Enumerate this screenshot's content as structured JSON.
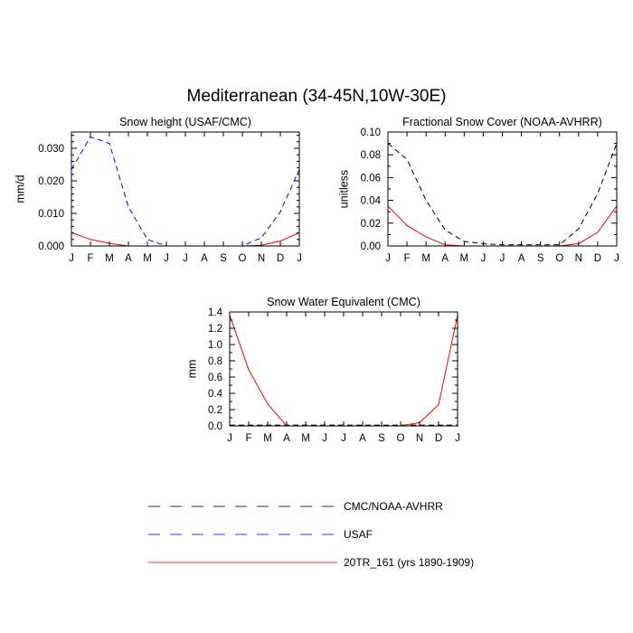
{
  "figure": {
    "title": "Mediterranean (34-45N,10W-30E)"
  },
  "colors": {
    "cmc": "#000000",
    "usaf": "#0000ff",
    "model": "#ff0000"
  },
  "legend": {
    "position": "bottom-center",
    "entries": [
      {
        "label": "CMC/NOAA-AVHRR",
        "color": "#000000",
        "style": "dashed"
      },
      {
        "label": "USAF",
        "color": "#0000ff",
        "style": "dashed"
      },
      {
        "label": "20TR_161 (yrs 1890-1909)",
        "color": "#ff0000",
        "style": "solid"
      }
    ]
  },
  "chart_data": [
    {
      "type": "line",
      "title": "Snow height (USAF/CMC)",
      "xlabel": "",
      "ylabel": "mm/d",
      "categories": [
        "J",
        "F",
        "M",
        "A",
        "M",
        "J",
        "J",
        "A",
        "S",
        "O",
        "N",
        "D",
        "J"
      ],
      "ylim": [
        0,
        0.035
      ],
      "yticks": [
        "0.000",
        "0.010",
        "0.020",
        "0.030"
      ],
      "ytick_values": [
        0,
        0.01,
        0.02,
        0.03
      ],
      "series": [
        {
          "name": "USAF",
          "color": "#0000ff",
          "style": "dashed",
          "values": [
            0.0235,
            0.0335,
            0.0315,
            0.012,
            0.002,
            0.0,
            0.0,
            0.0,
            0.0,
            0.0,
            0.0025,
            0.0105,
            0.0235
          ]
        },
        {
          "name": "20TR_161 (yrs 1890-1909)",
          "color": "#ff0000",
          "style": "solid",
          "values": [
            0.0041,
            0.002,
            0.0008,
            0.0,
            0.0,
            0.0,
            0.0,
            0.0,
            0.0,
            0.0,
            0.0002,
            0.0015,
            0.0041
          ]
        }
      ]
    },
    {
      "type": "line",
      "title": "Fractional Snow Cover (NOAA-AVHRR)",
      "xlabel": "",
      "ylabel": "unitless",
      "categories": [
        "J",
        "F",
        "M",
        "A",
        "M",
        "J",
        "J",
        "A",
        "S",
        "O",
        "N",
        "D",
        "J"
      ],
      "ylim": [
        0,
        0.1
      ],
      "yticks": [
        "0.00",
        "0.02",
        "0.04",
        "0.06",
        "0.08",
        "0.10"
      ],
      "ytick_values": [
        0,
        0.02,
        0.04,
        0.06,
        0.08,
        0.1
      ],
      "series": [
        {
          "name": "CMC/NOAA-AVHRR",
          "color": "#000000",
          "style": "dashed",
          "values": [
            0.09,
            0.076,
            0.04,
            0.014,
            0.004,
            0.002,
            0.001,
            0.001,
            0.001,
            0.001,
            0.015,
            0.046,
            0.09
          ]
        },
        {
          "name": "20TR_161 (yrs 1890-1909)",
          "color": "#ff0000",
          "style": "solid",
          "values": [
            0.035,
            0.018,
            0.008,
            0.001,
            0.0,
            0.0,
            0.0,
            0.0,
            0.0,
            0.0,
            0.002,
            0.012,
            0.035
          ]
        }
      ]
    },
    {
      "type": "line",
      "title": "Snow Water Equivalent (CMC)",
      "xlabel": "",
      "ylabel": "mm",
      "categories": [
        "J",
        "F",
        "M",
        "A",
        "M",
        "J",
        "J",
        "A",
        "S",
        "O",
        "N",
        "D",
        "J"
      ],
      "ylim": [
        0,
        1.4
      ],
      "yticks": [
        "0.0",
        "0.2",
        "0.4",
        "0.6",
        "0.8",
        "1.0",
        "1.2",
        "1.4"
      ],
      "ytick_values": [
        0,
        0.2,
        0.4,
        0.6,
        0.8,
        1.0,
        1.2,
        1.4
      ],
      "series": [
        {
          "name": "CMC/NOAA-AVHRR",
          "color": "#000000",
          "style": "dashed",
          "values": [
            0.01,
            0.01,
            0.01,
            0.01,
            0.01,
            0.01,
            0.01,
            0.01,
            0.01,
            0.01,
            0.01,
            0.01,
            0.01
          ]
        },
        {
          "name": "20TR_161 (yrs 1890-1909)",
          "color": "#ff0000",
          "style": "solid",
          "values": [
            1.36,
            0.69,
            0.27,
            0.0,
            0.0,
            0.0,
            0.0,
            0.0,
            0.0,
            0.0,
            0.04,
            0.26,
            1.36
          ]
        }
      ]
    }
  ]
}
